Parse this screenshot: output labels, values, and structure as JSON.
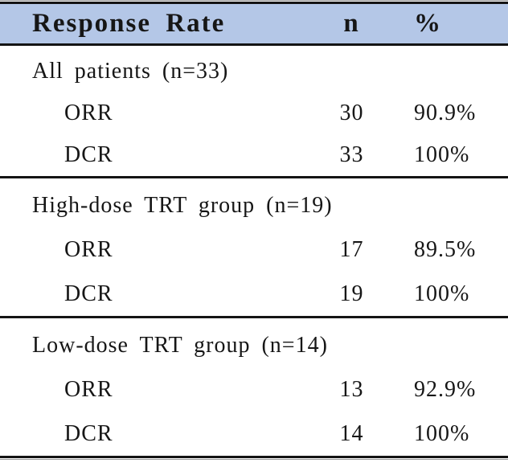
{
  "table": {
    "title": "Response rate table",
    "colors": {
      "header_bg": "#b4c7e7",
      "rule": "#141414",
      "hairline": "#9b9b9b",
      "text": "#161616"
    },
    "header": {
      "label": "Response Rate",
      "n": "n",
      "pct": "%"
    },
    "sections": [
      {
        "group": "All patients (n=33)",
        "rows": [
          {
            "label": "ORR",
            "n": "30",
            "pct": "90.9%"
          },
          {
            "label": "DCR",
            "n": "33",
            "pct": "100%"
          }
        ]
      },
      {
        "group": "High-dose TRT group (n=19)",
        "rows": [
          {
            "label": "ORR",
            "n": "17",
            "pct": "89.5%"
          },
          {
            "label": "DCR",
            "n": "19",
            "pct": "100%"
          }
        ]
      },
      {
        "group": "Low-dose TRT group (n=14)",
        "rows": [
          {
            "label": "ORR",
            "n": "13",
            "pct": "92.9%"
          },
          {
            "label": "DCR",
            "n": "14",
            "pct": "100%"
          }
        ]
      }
    ]
  }
}
